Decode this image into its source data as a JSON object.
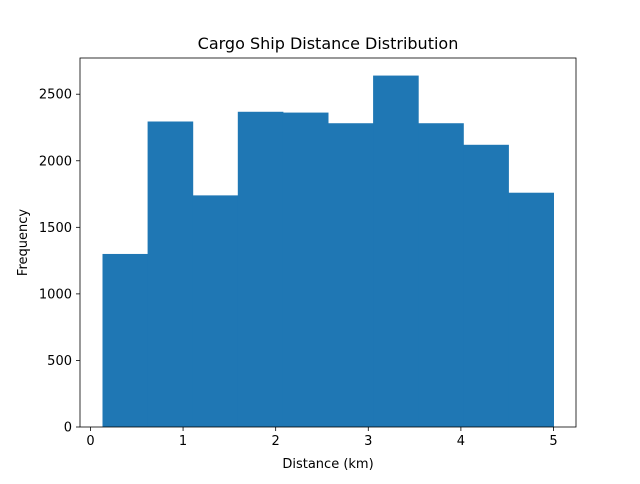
{
  "chart_data": {
    "type": "bar",
    "title": "Cargo Ship Distance Distribution",
    "xlabel": "Distance (km)",
    "ylabel": "Frequency",
    "bins": [
      {
        "x0": 0.13,
        "x1": 0.617,
        "value": 1300
      },
      {
        "x0": 0.617,
        "x1": 1.104,
        "value": 2295
      },
      {
        "x0": 1.104,
        "x1": 1.591,
        "value": 1740
      },
      {
        "x0": 1.591,
        "x1": 2.078,
        "value": 2368
      },
      {
        "x0": 2.078,
        "x1": 2.565,
        "value": 2362
      },
      {
        "x0": 2.565,
        "x1": 3.052,
        "value": 2282
      },
      {
        "x0": 3.052,
        "x1": 3.539,
        "value": 2640
      },
      {
        "x0": 3.539,
        "x1": 4.026,
        "value": 2282
      },
      {
        "x0": 4.026,
        "x1": 4.513,
        "value": 2120
      },
      {
        "x0": 4.513,
        "x1": 5.0,
        "value": 1760
      }
    ],
    "xlim": [
      -0.113,
      5.243
    ],
    "ylim": [
      0,
      2772
    ],
    "xticks": [
      0,
      1,
      2,
      3,
      4,
      5
    ],
    "yticks": [
      0,
      500,
      1000,
      1500,
      2000,
      2500
    ],
    "bar_color": "#1f77b4",
    "grid": false
  }
}
